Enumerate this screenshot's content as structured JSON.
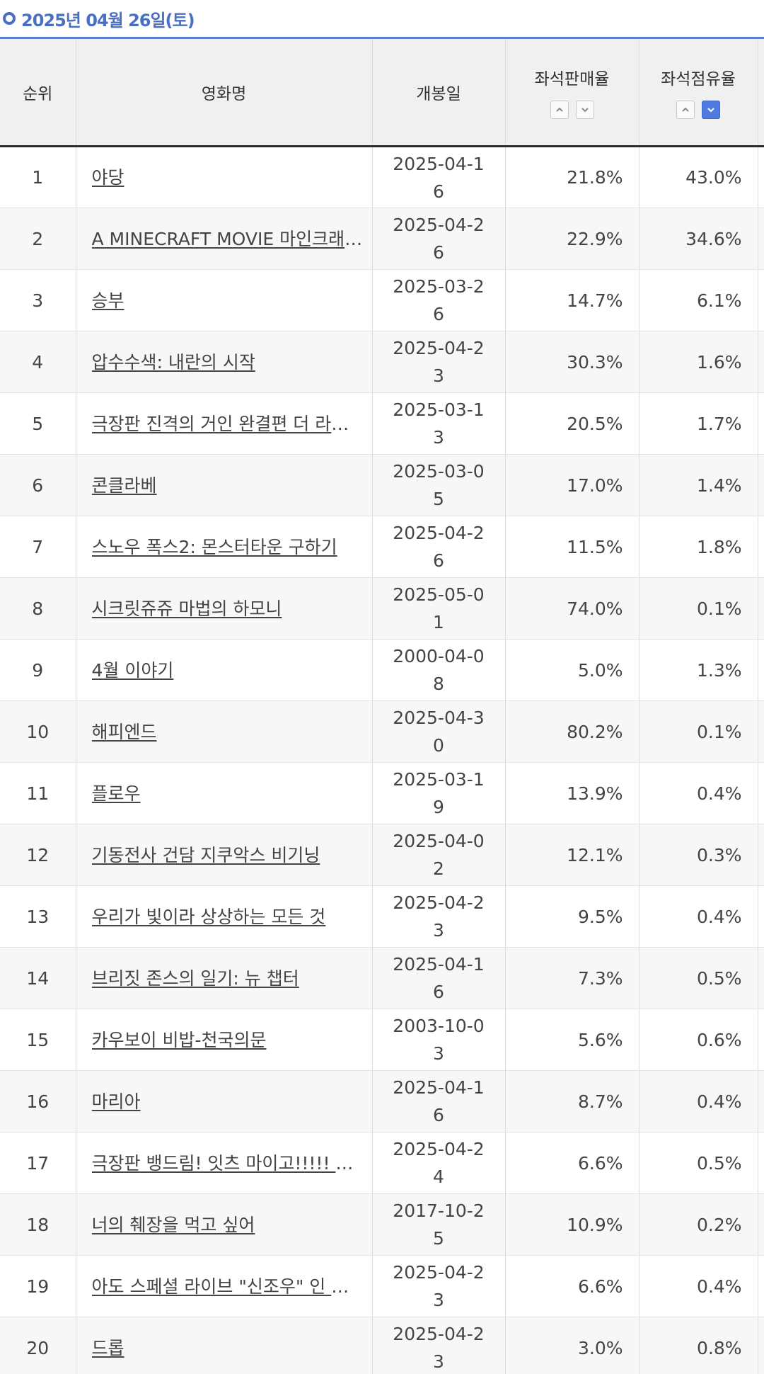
{
  "date_heading": "2025년 04월 26일(토)",
  "columns": {
    "rank": "순위",
    "title": "영화명",
    "release": "개봉일",
    "seat_sales": "좌석판매율",
    "seat_share": "좌석점유율"
  },
  "sort": {
    "seat_sales": {
      "asc": "up",
      "desc": "down",
      "active": "none"
    },
    "seat_share": {
      "asc": "up",
      "desc": "down",
      "active": "desc"
    }
  },
  "rows": [
    {
      "rank": "1",
      "title": "야당",
      "release": "2025-04-16",
      "seat_sales": "21.8%",
      "seat_share": "43.0%"
    },
    {
      "rank": "2",
      "title": "A MINECRAFT MOVIE 마인크래프트 무비",
      "release": "2025-04-26",
      "seat_sales": "22.9%",
      "seat_share": "34.6%"
    },
    {
      "rank": "3",
      "title": "승부",
      "release": "2025-03-26",
      "seat_sales": "14.7%",
      "seat_share": "6.1%"
    },
    {
      "rank": "4",
      "title": "압수수색: 내란의 시작",
      "release": "2025-04-23",
      "seat_sales": "30.3%",
      "seat_share": "1.6%"
    },
    {
      "rank": "5",
      "title": "극장판 진격의 거인 완결편 더 라스트 어택",
      "release": "2025-03-13",
      "seat_sales": "20.5%",
      "seat_share": "1.7%"
    },
    {
      "rank": "6",
      "title": "콘클라베",
      "release": "2025-03-05",
      "seat_sales": "17.0%",
      "seat_share": "1.4%"
    },
    {
      "rank": "7",
      "title": "스노우 폭스2: 몬스터타운 구하기",
      "release": "2025-04-26",
      "seat_sales": "11.5%",
      "seat_share": "1.8%"
    },
    {
      "rank": "8",
      "title": "시크릿쥬쥬 마법의 하모니",
      "release": "2025-05-01",
      "seat_sales": "74.0%",
      "seat_share": "0.1%"
    },
    {
      "rank": "9",
      "title": "4월 이야기",
      "release": "2000-04-08",
      "seat_sales": "5.0%",
      "seat_share": "1.3%"
    },
    {
      "rank": "10",
      "title": "해피엔드",
      "release": "2025-04-30",
      "seat_sales": "80.2%",
      "seat_share": "0.1%"
    },
    {
      "rank": "11",
      "title": "플로우",
      "release": "2025-03-19",
      "seat_sales": "13.9%",
      "seat_share": "0.4%"
    },
    {
      "rank": "12",
      "title": "기동전사 건담 지쿠악스 비기닝",
      "release": "2025-04-02",
      "seat_sales": "12.1%",
      "seat_share": "0.3%"
    },
    {
      "rank": "13",
      "title": "우리가 빛이라 상상하는 모든 것",
      "release": "2025-04-23",
      "seat_sales": "9.5%",
      "seat_share": "0.4%"
    },
    {
      "rank": "14",
      "title": "브리짓 존스의 일기: 뉴 챕터",
      "release": "2025-04-16",
      "seat_sales": "7.3%",
      "seat_share": "0.5%"
    },
    {
      "rank": "15",
      "title": "카우보이 비밥-천국의문",
      "release": "2003-10-03",
      "seat_sales": "5.6%",
      "seat_share": "0.6%"
    },
    {
      "rank": "16",
      "title": "마리아",
      "release": "2025-04-16",
      "seat_sales": "8.7%",
      "seat_share": "0.4%"
    },
    {
      "rank": "17",
      "title": "극장판 뱅드림! 잇츠 마이고!!!!! 전편",
      "release": "2025-04-24",
      "seat_sales": "6.6%",
      "seat_share": "0.5%"
    },
    {
      "rank": "18",
      "title": "너의 췌장을 먹고 싶어",
      "release": "2017-10-25",
      "seat_sales": "10.9%",
      "seat_share": "0.2%"
    },
    {
      "rank": "19",
      "title": "아도 스페셜 라이브 \"신조우\" 인 시네마",
      "release": "2025-04-23",
      "seat_sales": "6.6%",
      "seat_share": "0.4%"
    },
    {
      "rank": "20",
      "title": "드롭",
      "release": "2025-04-23",
      "seat_sales": "3.0%",
      "seat_share": "0.8%"
    }
  ]
}
